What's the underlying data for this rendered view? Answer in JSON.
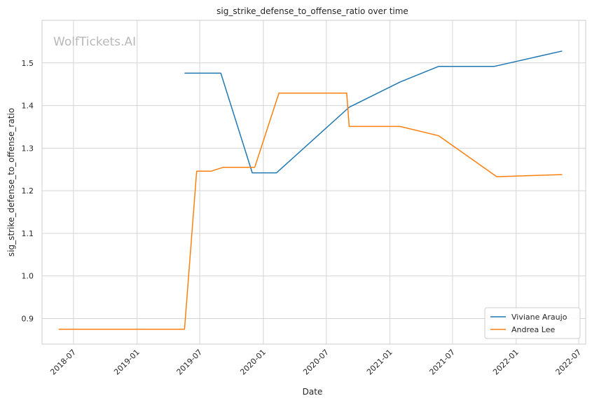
{
  "chart_data": {
    "type": "line",
    "title": "sig_strike_defense_to_offense_ratio over time",
    "xlabel": "Date",
    "ylabel": "sig_strike_defense_to_offense_ratio",
    "watermark": "WolfTickets.AI",
    "x_ticks": [
      "2018-07",
      "2019-01",
      "2019-07",
      "2020-01",
      "2020-07",
      "2021-01",
      "2021-07",
      "2022-01",
      "2022-07"
    ],
    "y_ticks": [
      0.9,
      1.0,
      1.1,
      1.2,
      1.3,
      1.4,
      1.5
    ],
    "xlim": [
      "2018-04-01",
      "2022-07-21"
    ],
    "ylim": [
      0.84,
      1.6
    ],
    "grid": true,
    "legend_position": "lower-right",
    "series": [
      {
        "name": "Viviane Araujo",
        "color": "#1f77b4",
        "points": [
          {
            "x": "2019-05-18",
            "y": 1.476
          },
          {
            "x": "2019-08-31",
            "y": 1.476
          },
          {
            "x": "2019-11-30",
            "y": 1.242
          },
          {
            "x": "2020-02-08",
            "y": 1.242
          },
          {
            "x": "2020-09-05",
            "y": 1.396
          },
          {
            "x": "2021-01-30",
            "y": 1.455
          },
          {
            "x": "2021-05-22",
            "y": 1.492
          },
          {
            "x": "2021-10-30",
            "y": 1.492
          },
          {
            "x": "2022-05-14",
            "y": 1.528
          }
        ]
      },
      {
        "name": "Andrea Lee",
        "color": "#ff7f0e",
        "points": [
          {
            "x": "2018-05-19",
            "y": 0.875
          },
          {
            "x": "2019-05-18",
            "y": 0.875
          },
          {
            "x": "2019-06-22",
            "y": 1.246
          },
          {
            "x": "2019-08-03",
            "y": 1.246
          },
          {
            "x": "2019-09-07",
            "y": 1.255
          },
          {
            "x": "2019-12-07",
            "y": 1.255
          },
          {
            "x": "2020-02-15",
            "y": 1.429
          },
          {
            "x": "2020-08-29",
            "y": 1.429
          },
          {
            "x": "2020-09-05",
            "y": 1.351
          },
          {
            "x": "2021-01-30",
            "y": 1.351
          },
          {
            "x": "2021-05-22",
            "y": 1.329
          },
          {
            "x": "2021-11-06",
            "y": 1.233
          },
          {
            "x": "2022-05-14",
            "y": 1.238
          }
        ]
      }
    ]
  }
}
